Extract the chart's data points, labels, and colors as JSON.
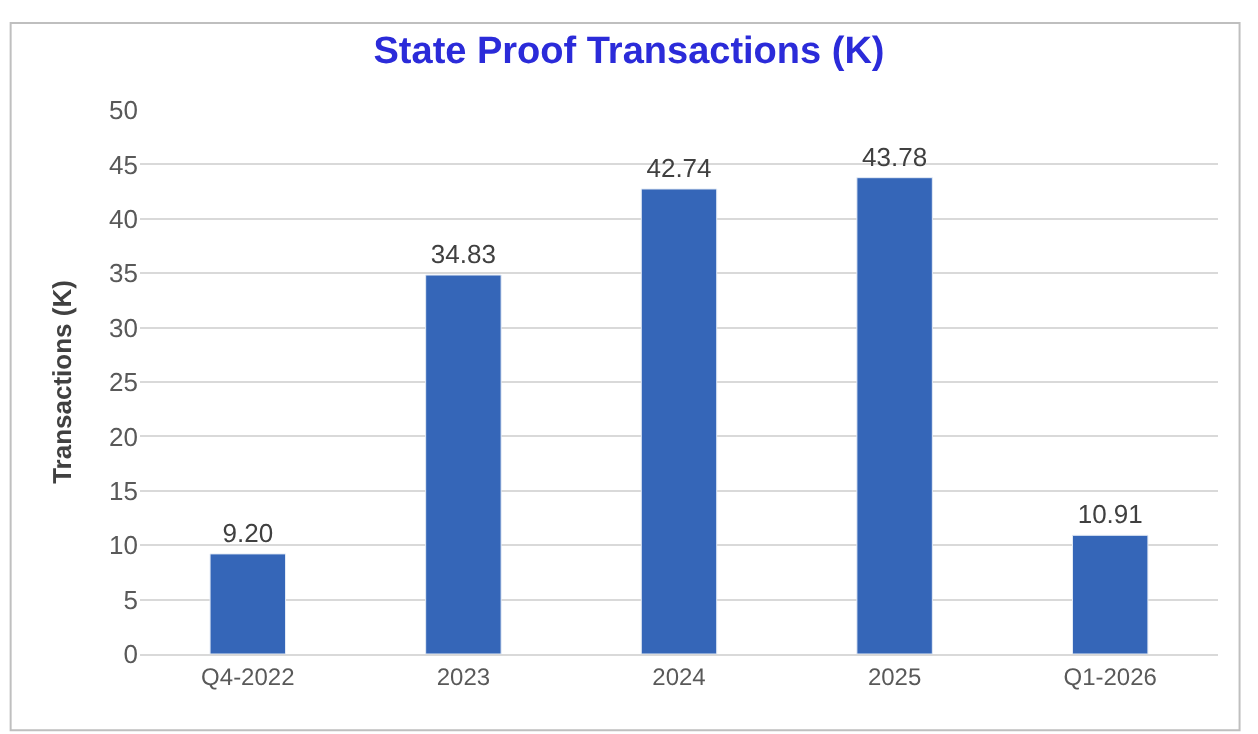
{
  "chart_data": {
    "type": "bar",
    "title": "State Proof Transactions (K)",
    "ylabel": "Transactions (K)",
    "categories": [
      "Q4-2022",
      "2023",
      "2024",
      "2025",
      "Q1-2026"
    ],
    "values": [
      9.2,
      34.83,
      42.74,
      43.78,
      10.91
    ],
    "value_labels": [
      "9.20",
      "34.83",
      "42.74",
      "43.78",
      "10.91"
    ],
    "color": "#3566b8",
    "ylim": [
      0,
      50
    ],
    "yticks": [
      0,
      5,
      10,
      15,
      20,
      25,
      30,
      35,
      40,
      45,
      50
    ],
    "grid": "y",
    "legend": false
  }
}
